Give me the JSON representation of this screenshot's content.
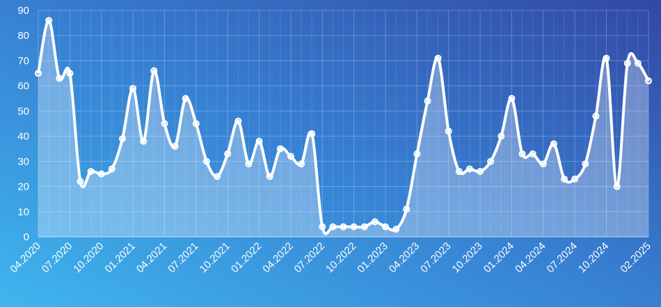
{
  "chart_data": {
    "type": "line",
    "categories": [
      "04.2020",
      null,
      null,
      "07.2020",
      null,
      null,
      "10.2020",
      null,
      null,
      "01.2021",
      null,
      null,
      "04.2021",
      null,
      null,
      "07.2021",
      null,
      null,
      "10.2021",
      null,
      null,
      "01.2022",
      null,
      null,
      "04.2022",
      null,
      null,
      "07.2022",
      null,
      null,
      "10.2022",
      null,
      null,
      "01.2023",
      null,
      null,
      "04.2023",
      null,
      null,
      "07.2023",
      null,
      null,
      "10.2023",
      null,
      null,
      "01.2024",
      null,
      null,
      "04.2024",
      null,
      null,
      "07.2024",
      null,
      null,
      "10.2024",
      null,
      null,
      null,
      "02.2025"
    ],
    "values": [
      65,
      86,
      63,
      65,
      22,
      26,
      25,
      27,
      39,
      59,
      38,
      66,
      45,
      36,
      55,
      45,
      30,
      24,
      33,
      46,
      29,
      38,
      24,
      35,
      32,
      29,
      41,
      4,
      4,
      4,
      4,
      4,
      6,
      4,
      3,
      11,
      33,
      54,
      71,
      42,
      26,
      27,
      26,
      30,
      40,
      55,
      33,
      33,
      29,
      37,
      23,
      23,
      29,
      48,
      71,
      20,
      69,
      69,
      62
    ],
    "color": "#ffffff",
    "ylim": [
      0,
      90
    ],
    "yticks": [
      0,
      10,
      20,
      30,
      40,
      50,
      60,
      70,
      80,
      90
    ],
    "grid": true
  }
}
